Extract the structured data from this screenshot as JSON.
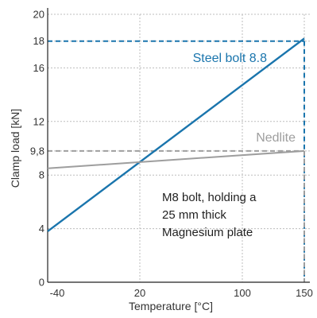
{
  "chart_data": {
    "type": "line",
    "title": "",
    "xlabel": "Temperature [°C]",
    "ylabel": "Clamp load [kN]",
    "xlim": [
      -40,
      150
    ],
    "ylim": [
      0,
      20
    ],
    "x_ticks": [
      -40,
      20,
      100,
      150
    ],
    "x_tick_labels": [
      "-40",
      "20",
      "100",
      "150"
    ],
    "y_ticks": [
      0,
      4,
      8,
      9.8,
      12,
      16,
      18,
      20
    ],
    "y_tick_labels": [
      "0",
      "4",
      "8",
      "9,8",
      "12",
      "16",
      "18",
      "20"
    ],
    "grid": true,
    "series": [
      {
        "name": "Steel bolt 8.8",
        "color": "#1a75ad",
        "x": [
          -40,
          150
        ],
        "y": [
          3.8,
          18.2
        ]
      },
      {
        "name": "Nedlite",
        "color": "#9e9e9e",
        "x": [
          -40,
          150
        ],
        "y": [
          8.5,
          9.8
        ]
      }
    ],
    "reference_lines": [
      {
        "y": 18,
        "x_end": 150,
        "color": "#1a75ad"
      },
      {
        "y": 9.8,
        "x_end": 150,
        "color": "#9e9e9e"
      }
    ],
    "annotation": [
      "M8 bolt, holding a",
      "25 mm thick",
      "Magnesium plate"
    ]
  }
}
